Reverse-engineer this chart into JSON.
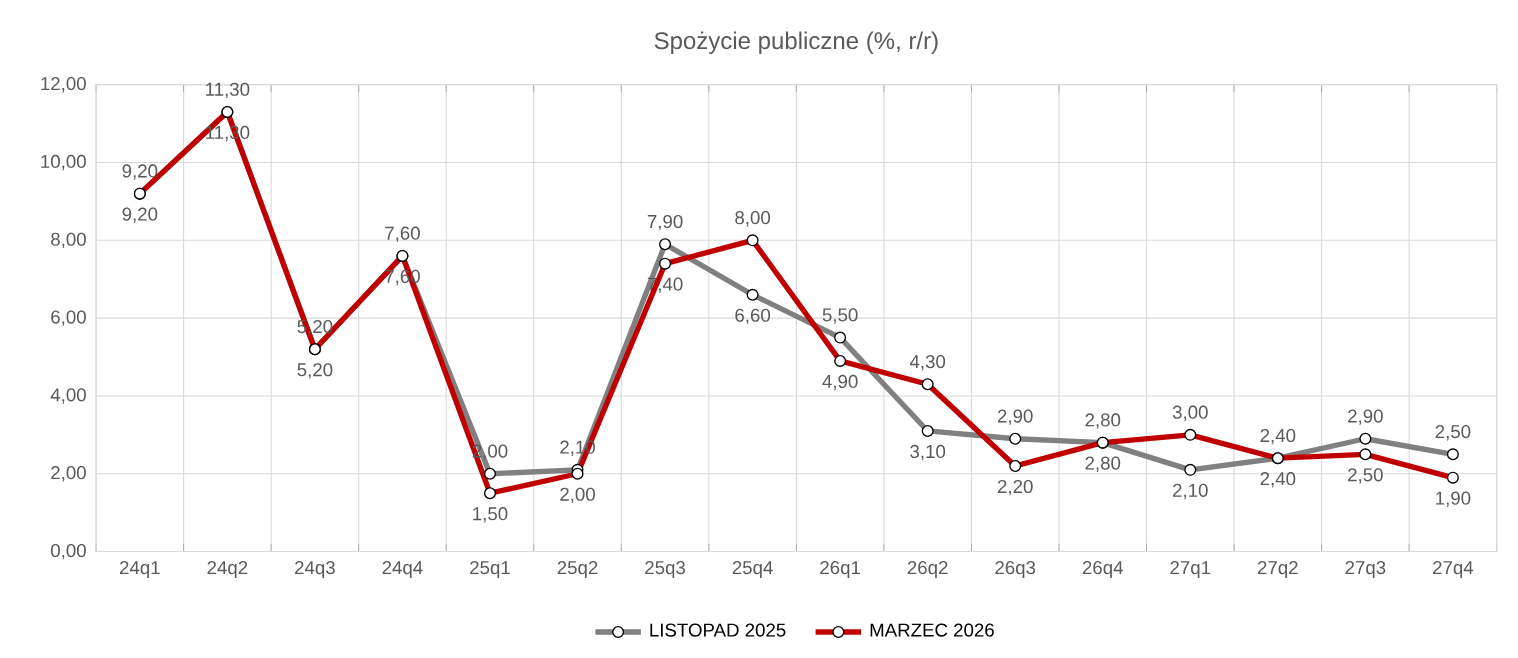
{
  "chart_data": {
    "type": "line",
    "title": "Spożycie publiczne (%, r/r)",
    "categories": [
      "24q1",
      "24q2",
      "24q3",
      "24q4",
      "25q1",
      "25q2",
      "25q3",
      "25q4",
      "26q1",
      "26q2",
      "26q3",
      "26q4",
      "27q1",
      "27q2",
      "27q3",
      "27q4"
    ],
    "series": [
      {
        "name": "LISTOPAD 2025",
        "color": "#808080",
        "values": [
          9.2,
          11.3,
          5.2,
          7.6,
          2.0,
          2.1,
          7.9,
          6.6,
          5.5,
          3.1,
          2.9,
          2.8,
          2.1,
          2.4,
          2.9,
          2.5
        ],
        "value_labels": [
          "9,20",
          "11,30",
          "5,20",
          "7,60",
          "2,00",
          "2,10",
          "7,90",
          "6,60",
          "5,50",
          "3,10",
          "2,90",
          "2,80",
          "2,10",
          "2,40",
          "2,90",
          "2,50"
        ]
      },
      {
        "name": "MARZEC 2026",
        "color": "#c00000",
        "values": [
          9.2,
          11.3,
          5.2,
          7.6,
          1.5,
          2.0,
          7.4,
          8.0,
          4.9,
          4.3,
          2.2,
          2.8,
          3.0,
          2.4,
          2.5,
          1.9
        ],
        "value_labels": [
          "9,20",
          "11,30",
          "5,20",
          "7,60",
          "1,50",
          "2,00",
          "7,40",
          "8,00",
          "4,90",
          "4,30",
          "2,20",
          "2,80",
          "3,00",
          "2,40",
          "2,50",
          "1,90"
        ]
      }
    ],
    "ylim": [
      0,
      12
    ],
    "yticks": [
      {
        "value": 0,
        "label": "0,00"
      },
      {
        "value": 2,
        "label": "2,00"
      },
      {
        "value": 4,
        "label": "4,00"
      },
      {
        "value": 6,
        "label": "6,00"
      },
      {
        "value": 8,
        "label": "8,00"
      },
      {
        "value": 10,
        "label": "10,00"
      },
      {
        "value": 12,
        "label": "12,00"
      }
    ],
    "grid": true,
    "legend": "bottom",
    "marker": "circle",
    "line_style": "solid"
  }
}
